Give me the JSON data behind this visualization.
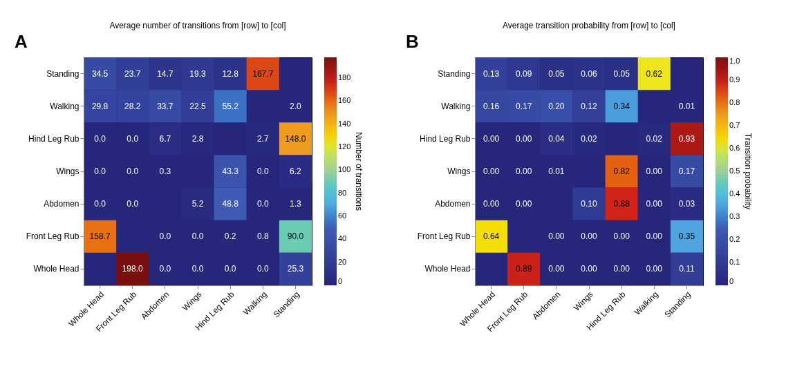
{
  "chart_data": [
    {
      "type": "heatmap",
      "title": "Average number of transitions from [row] to [col]",
      "clabel": "Number of transitions",
      "annotations": [
        "A"
      ],
      "categories": [
        "Whole Head",
        "Front Leg Rub",
        "Abdomen",
        "Wings",
        "Hind Leg Rub",
        "Walking",
        "Standing"
      ],
      "y_categories": [
        "Standing",
        "Walking",
        "Hind Leg Rub",
        "Wings",
        "Abdomen",
        "Front Leg Rub",
        "Whole Head"
      ],
      "cells": [
        [
          34.5,
          23.7,
          14.7,
          19.3,
          12.8,
          167.7,
          null
        ],
        [
          29.8,
          28.2,
          33.7,
          22.5,
          55.2,
          null,
          2.0
        ],
        [
          0.0,
          0.0,
          6.7,
          2.8,
          null,
          2.7,
          148.0
        ],
        [
          0.0,
          0.0,
          0.3,
          null,
          43.3,
          0.0,
          6.2
        ],
        [
          0.0,
          0.0,
          null,
          5.2,
          48.8,
          0.0,
          1.3
        ],
        [
          158.7,
          null,
          0.0,
          0.0,
          0.2,
          0.8,
          90.0
        ],
        [
          null,
          198.0,
          0.0,
          0.0,
          0.0,
          0.0,
          25.3
        ]
      ],
      "cell_labels": [
        [
          "34.5",
          "23.7",
          "14.7",
          "19.3",
          "12.8",
          "167.7",
          null
        ],
        [
          "29.8",
          "28.2",
          "33.7",
          "22.5",
          "55.2",
          null,
          "2.0"
        ],
        [
          "0.0",
          "0.0",
          "6.7",
          "2.8",
          null,
          "2.7",
          "148.0"
        ],
        [
          "0.0",
          "0.0",
          "0.3",
          null,
          "43.3",
          "0.0",
          "6.2"
        ],
        [
          "0.0",
          "0.0",
          null,
          "5.2",
          "48.8",
          "0.0",
          "1.3"
        ],
        [
          "158.7",
          null,
          "0.0",
          "0.0",
          "0.2",
          "0.8",
          "90.0"
        ],
        [
          null,
          "198.0",
          "0.0",
          "0.0",
          "0.0",
          "0.0",
          "25.3"
        ]
      ],
      "clim": [
        0,
        198
      ],
      "cticks": [
        0,
        20,
        40,
        60,
        80,
        100,
        120,
        140,
        160,
        180
      ]
    },
    {
      "type": "heatmap",
      "title": "Average transition probability from [row] to [col]",
      "clabel": "Transition probability",
      "annotations": [
        "B"
      ],
      "categories": [
        "Whole Head",
        "Front Leg Rub",
        "Abdomen",
        "Wings",
        "Hind Leg Rub",
        "Walking",
        "Standing"
      ],
      "y_categories": [
        "Standing",
        "Walking",
        "Hind Leg Rub",
        "Wings",
        "Abdomen",
        "Front Leg Rub",
        "Whole Head"
      ],
      "cells": [
        [
          0.13,
          0.09,
          0.05,
          0.06,
          0.05,
          0.62,
          null
        ],
        [
          0.16,
          0.17,
          0.2,
          0.12,
          0.34,
          null,
          0.01
        ],
        [
          0.0,
          0.0,
          0.04,
          0.02,
          null,
          0.02,
          0.93
        ],
        [
          0.0,
          0.0,
          0.01,
          null,
          0.82,
          0.0,
          0.17
        ],
        [
          0.0,
          0.0,
          null,
          0.1,
          0.88,
          0.0,
          0.03
        ],
        [
          0.64,
          null,
          0.0,
          0.0,
          0.0,
          0.0,
          0.35
        ],
        [
          null,
          0.89,
          0.0,
          0.0,
          0.0,
          0.0,
          0.11
        ]
      ],
      "cell_labels": [
        [
          "0.13",
          "0.09",
          "0.05",
          "0.06",
          "0.05",
          "0.62",
          null
        ],
        [
          "0.16",
          "0.17",
          "0.20",
          "0.12",
          "0.34",
          null,
          "0.01"
        ],
        [
          "0.00",
          "0.00",
          "0.04",
          "0.02",
          null,
          "0.02",
          "0.93"
        ],
        [
          "0.00",
          "0.00",
          "0.01",
          null,
          "0.82",
          "0.00",
          "0.17"
        ],
        [
          "0.00",
          "0.00",
          null,
          "0.10",
          "0.88",
          "0.00",
          "0.03"
        ],
        [
          "0.64",
          null,
          "0.00",
          "0.00",
          "0.00",
          "0.00",
          "0.35"
        ],
        [
          null,
          "0.89",
          "0.00",
          "0.00",
          "0.00",
          "0.00",
          "0.11"
        ]
      ],
      "clim": [
        0,
        1
      ],
      "cticks": [
        0,
        0.1,
        0.2,
        0.3,
        0.4,
        0.5,
        0.6,
        0.7,
        0.8,
        0.9,
        {
          "value": 1,
          "label": "1.0"
        }
      ]
    }
  ]
}
